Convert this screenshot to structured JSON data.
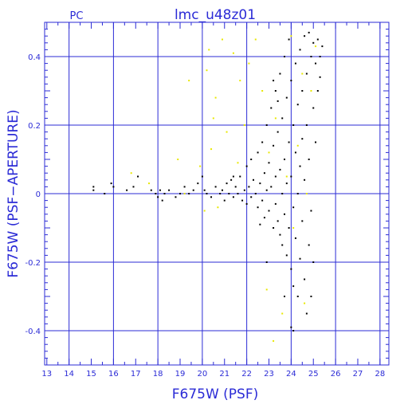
{
  "chart_data": {
    "type": "scatter",
    "title": "lmc_u48z01",
    "corner_label": "PC",
    "xlabel": "F675W (PSF)",
    "ylabel": "F675W (PSF−APERTURE)",
    "xlim": [
      12.9,
      28.4
    ],
    "ylim": [
      -0.5,
      0.5
    ],
    "x_ticks": [
      13,
      14,
      15,
      16,
      17,
      18,
      19,
      20,
      21,
      22,
      23,
      24,
      25,
      26,
      27,
      28
    ],
    "y_ticks": [
      -0.4,
      -0.2,
      0,
      0.2,
      0.4
    ],
    "grid": true,
    "colors": {
      "axis": "#2b2bd6",
      "black_points": "#000000",
      "yellow_points": "#e8e800",
      "background": "#ffffff"
    },
    "series": [
      {
        "color": "black",
        "points": [
          [
            15.1,
            0.02
          ],
          [
            15.1,
            0.01
          ],
          [
            15.6,
            0.0
          ],
          [
            15.9,
            0.03
          ],
          [
            16.0,
            0.02
          ],
          [
            16.6,
            0.01
          ],
          [
            16.9,
            0.02
          ],
          [
            17.1,
            0.05
          ],
          [
            17.7,
            0.01
          ],
          [
            17.9,
            0.0
          ],
          [
            18.0,
            -0.01
          ],
          [
            18.1,
            0.01
          ],
          [
            18.2,
            -0.02
          ],
          [
            18.3,
            0.0
          ],
          [
            18.5,
            0.01
          ],
          [
            18.8,
            -0.01
          ],
          [
            19.0,
            0.0
          ],
          [
            19.2,
            0.02
          ],
          [
            19.4,
            0.0
          ],
          [
            19.6,
            0.01
          ],
          [
            19.8,
            0.03
          ],
          [
            20.0,
            0.05
          ],
          [
            20.1,
            0.01
          ],
          [
            20.2,
            0.0
          ],
          [
            20.4,
            -0.01
          ],
          [
            20.6,
            0.02
          ],
          [
            20.8,
            0.0
          ],
          [
            20.9,
            0.01
          ],
          [
            21.0,
            -0.02
          ],
          [
            21.1,
            0.03
          ],
          [
            21.2,
            0.0
          ],
          [
            21.3,
            0.04
          ],
          [
            21.4,
            -0.01
          ],
          [
            21.5,
            0.02
          ],
          [
            21.6,
            0.0
          ],
          [
            21.7,
            0.05
          ],
          [
            21.8,
            -0.02
          ],
          [
            21.9,
            0.01
          ],
          [
            22.0,
            0.08
          ],
          [
            22.0,
            -0.03
          ],
          [
            22.1,
            0.02
          ],
          [
            22.2,
            0.1
          ],
          [
            22.2,
            -0.01
          ],
          [
            22.3,
            0.04
          ],
          [
            22.4,
            0.0
          ],
          [
            22.5,
            0.12
          ],
          [
            22.5,
            -0.04
          ],
          [
            22.6,
            0.03
          ],
          [
            22.7,
            0.15
          ],
          [
            22.7,
            -0.02
          ],
          [
            22.8,
            0.06
          ],
          [
            22.8,
            -0.07
          ],
          [
            22.9,
            0.2
          ],
          [
            22.9,
            0.01
          ],
          [
            23.0,
            0.09
          ],
          [
            23.0,
            -0.05
          ],
          [
            23.1,
            0.25
          ],
          [
            23.1,
            0.02
          ],
          [
            23.2,
            0.14
          ],
          [
            23.2,
            -0.1
          ],
          [
            23.3,
            0.3
          ],
          [
            23.3,
            0.05
          ],
          [
            23.3,
            -0.03
          ],
          [
            23.4,
            0.18
          ],
          [
            23.4,
            -0.08
          ],
          [
            23.5,
            0.35
          ],
          [
            23.5,
            0.07
          ],
          [
            23.5,
            -0.12
          ],
          [
            23.6,
            0.22
          ],
          [
            23.6,
            0.0
          ],
          [
            23.6,
            -0.15
          ],
          [
            23.7,
            0.4
          ],
          [
            23.7,
            0.1
          ],
          [
            23.7,
            -0.06
          ],
          [
            23.8,
            0.28
          ],
          [
            23.8,
            0.03
          ],
          [
            23.8,
            -0.18
          ],
          [
            23.9,
            0.45
          ],
          [
            23.9,
            0.15
          ],
          [
            23.9,
            -0.1
          ],
          [
            24.0,
            0.33
          ],
          [
            24.0,
            0.05
          ],
          [
            24.0,
            -0.22
          ],
          [
            24.1,
            0.2
          ],
          [
            24.1,
            -0.04
          ],
          [
            24.1,
            -0.27
          ],
          [
            24.2,
            0.38
          ],
          [
            24.2,
            0.12
          ],
          [
            24.2,
            -0.13
          ],
          [
            24.3,
            0.26
          ],
          [
            24.3,
            0.0
          ],
          [
            24.3,
            -0.3
          ],
          [
            24.4,
            0.42
          ],
          [
            24.4,
            0.08
          ],
          [
            24.4,
            -0.19
          ],
          [
            24.5,
            0.3
          ],
          [
            24.5,
            0.16
          ],
          [
            24.5,
            -0.08
          ],
          [
            24.6,
            0.46
          ],
          [
            24.6,
            0.04
          ],
          [
            24.6,
            -0.25
          ],
          [
            24.7,
            0.35
          ],
          [
            24.7,
            0.2
          ],
          [
            24.7,
            -0.35
          ],
          [
            24.8,
            0.47
          ],
          [
            24.8,
            0.1
          ],
          [
            24.8,
            -0.15
          ],
          [
            24.9,
            0.4
          ],
          [
            24.9,
            -0.05
          ],
          [
            24.9,
            -0.3
          ],
          [
            25.0,
            0.44
          ],
          [
            25.0,
            0.25
          ],
          [
            25.0,
            -0.2
          ],
          [
            25.1,
            0.38
          ],
          [
            25.1,
            0.15
          ],
          [
            25.2,
            0.45
          ],
          [
            25.2,
            0.3
          ],
          [
            25.3,
            0.4
          ],
          [
            25.3,
            0.34
          ],
          [
            25.4,
            0.43
          ],
          [
            24.0,
            -0.39
          ],
          [
            24.1,
            -0.4
          ],
          [
            23.7,
            -0.3
          ],
          [
            22.9,
            -0.2
          ],
          [
            21.4,
            0.05
          ],
          [
            22.6,
            -0.09
          ],
          [
            23.4,
            0.27
          ],
          [
            23.2,
            0.33
          ]
        ]
      },
      {
        "color": "yellow",
        "points": [
          [
            16.8,
            0.06
          ],
          [
            17.6,
            0.03
          ],
          [
            18.9,
            0.1
          ],
          [
            19.4,
            0.33
          ],
          [
            19.9,
            0.08
          ],
          [
            20.2,
            0.36
          ],
          [
            20.3,
            0.42
          ],
          [
            20.4,
            0.13
          ],
          [
            20.5,
            0.22
          ],
          [
            20.6,
            0.28
          ],
          [
            20.7,
            -0.04
          ],
          [
            20.9,
            0.45
          ],
          [
            21.1,
            0.18
          ],
          [
            21.4,
            0.41
          ],
          [
            21.6,
            0.09
          ],
          [
            21.9,
            0.2
          ],
          [
            22.1,
            0.38
          ],
          [
            22.4,
            0.45
          ],
          [
            22.7,
            0.3
          ],
          [
            22.9,
            -0.28
          ],
          [
            23.0,
            0.12
          ],
          [
            23.3,
            0.22
          ],
          [
            23.6,
            -0.35
          ],
          [
            23.8,
            0.05
          ],
          [
            24.0,
            0.46
          ],
          [
            24.1,
            -0.1
          ],
          [
            24.3,
            0.14
          ],
          [
            24.5,
            0.35
          ],
          [
            24.6,
            -0.32
          ],
          [
            24.7,
            0.0
          ],
          [
            24.9,
            0.3
          ],
          [
            25.1,
            0.43
          ],
          [
            23.2,
            -0.43
          ],
          [
            20.1,
            -0.05
          ],
          [
            19.2,
            0.0
          ],
          [
            21.7,
            0.33
          ]
        ]
      }
    ]
  }
}
